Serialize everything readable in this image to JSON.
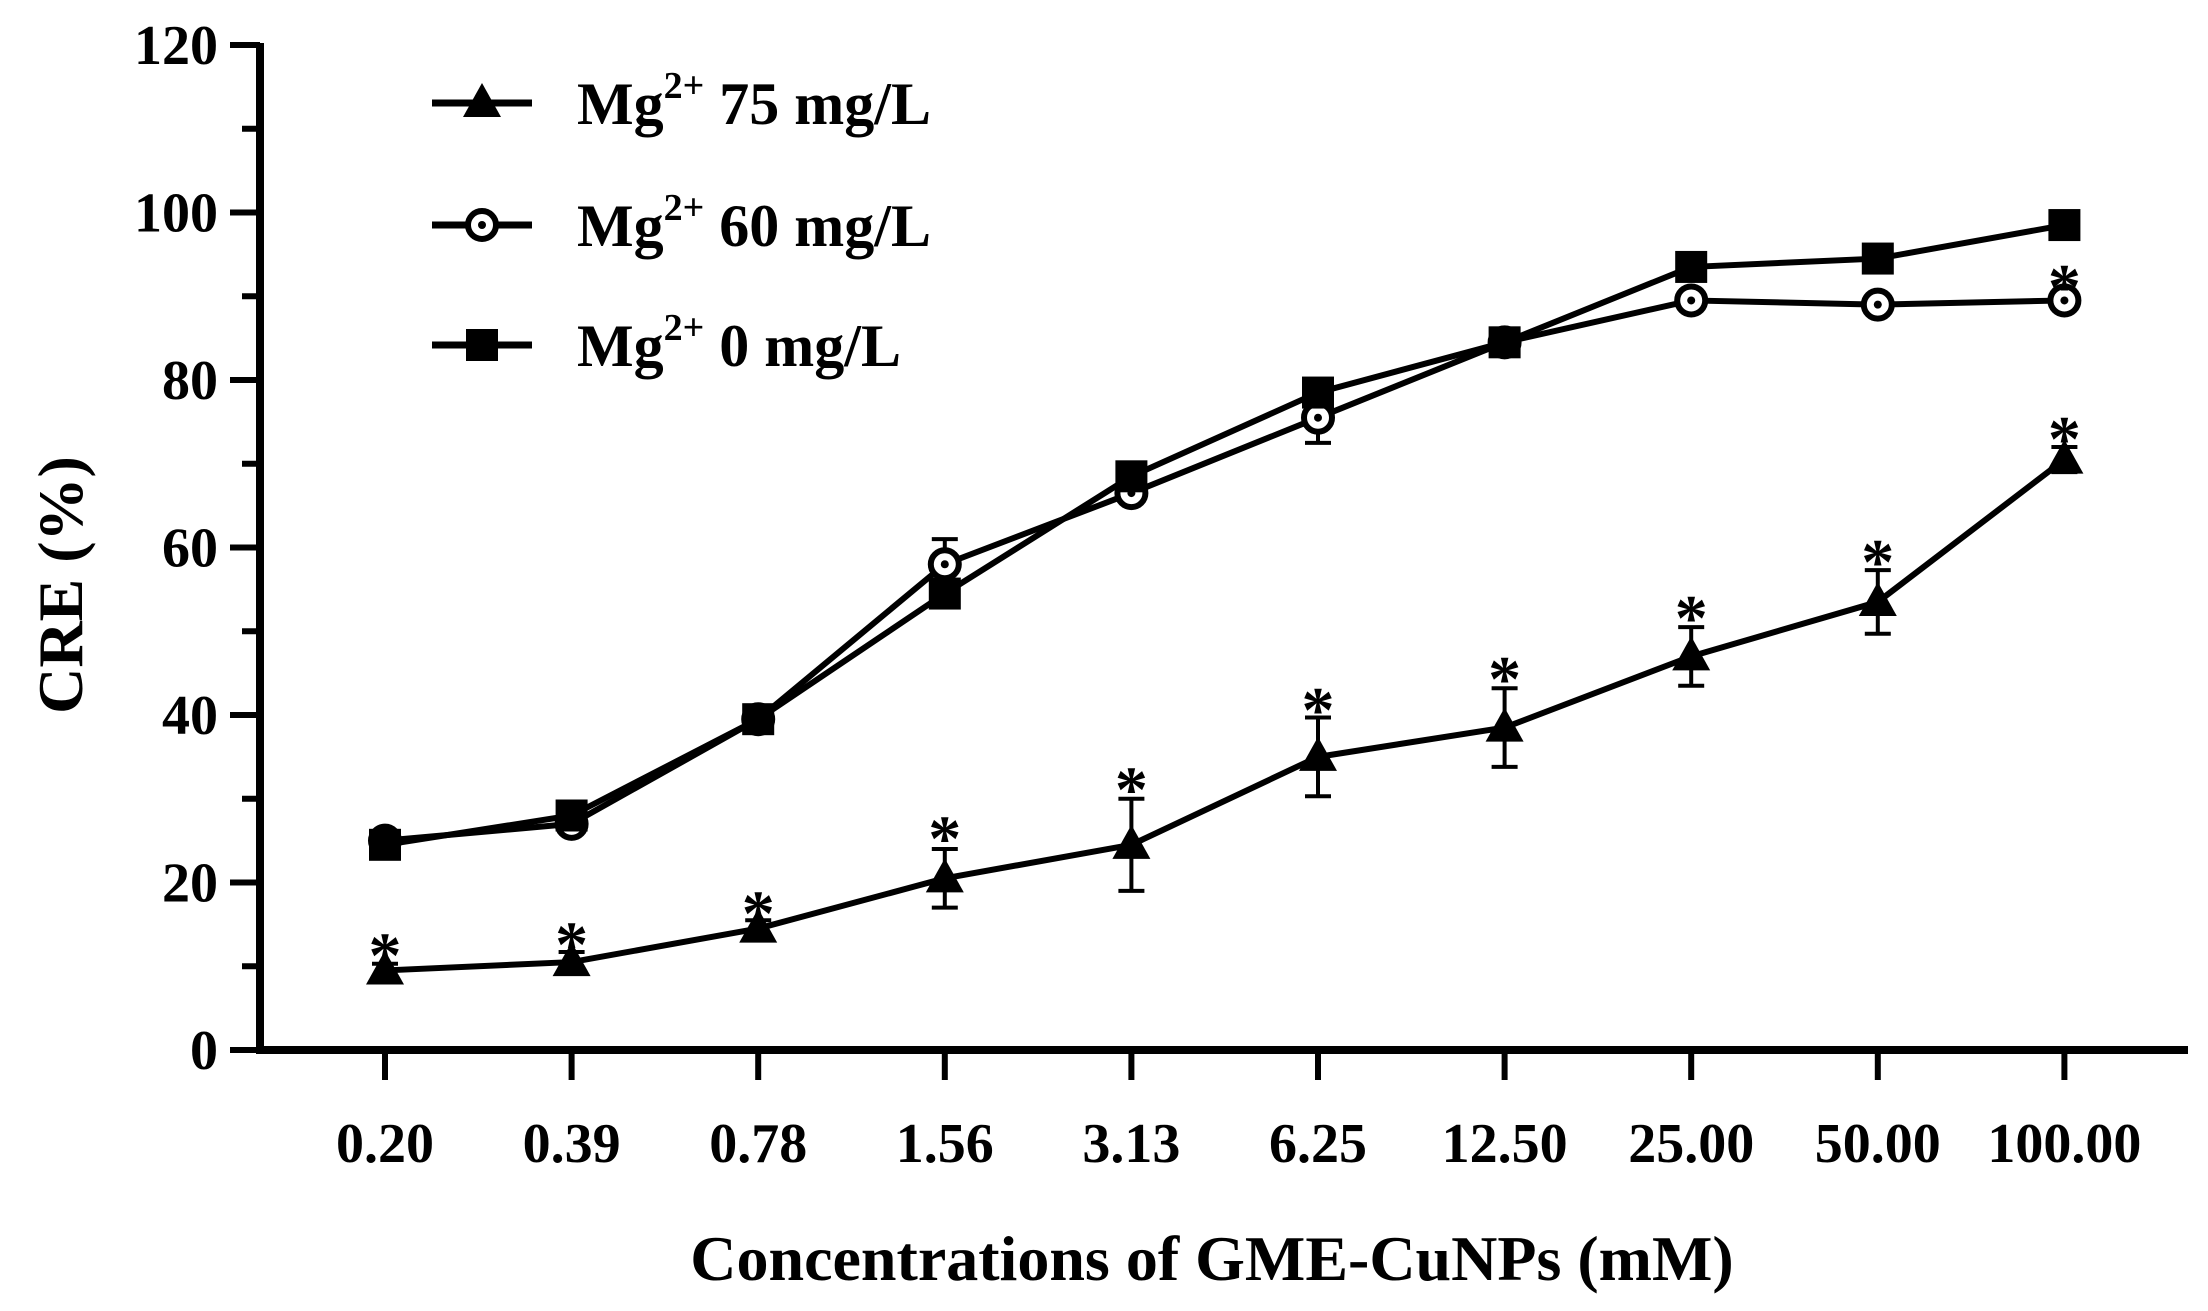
{
  "chart_data": {
    "type": "line",
    "title": "",
    "xlabel": "Concentrations of GME-CuNPs (mM)",
    "ylabel": "CRE (%)",
    "categories": [
      "0.20",
      "0.39",
      "0.78",
      "1.56",
      "3.13",
      "6.25",
      "12.50",
      "25.00",
      "50.00",
      "100.00"
    ],
    "ylim": [
      0,
      120
    ],
    "yticks": [
      "0",
      "20",
      "40",
      "60",
      "80",
      "100",
      "120"
    ],
    "legend_position": "top-left",
    "series": [
      {
        "name": "Mg 2+ 75 mg/L",
        "legend_base": "Mg",
        "legend_sup": "2+",
        "legend_rest": " 75 mg/L",
        "marker": "triangle",
        "values": [
          9.5,
          10.5,
          14.5,
          20.5,
          24.5,
          35,
          38.5,
          47,
          53.5,
          70.5
        ],
        "errors": [
          0.8,
          1.2,
          1.0,
          3.5,
          5.5,
          4.7,
          4.7,
          3.5,
          3.8,
          1.5
        ]
      },
      {
        "name": "Mg 2+ 60 mg/L",
        "legend_base": "Mg",
        "legend_sup": "2+",
        "legend_rest": " 60 mg/L",
        "marker": "circle",
        "values": [
          25,
          27,
          39.5,
          58,
          66.5,
          75.5,
          84.5,
          89.5,
          89,
          89.5
        ],
        "errors": [
          0.6,
          0.6,
          0.6,
          3.0,
          0.8,
          3.0,
          0.5,
          0.8,
          0.6,
          0.8
        ]
      },
      {
        "name": "Mg 2+ 0 mg/L",
        "legend_base": "Mg",
        "legend_sup": "2+",
        "legend_rest": " 0 mg/L",
        "marker": "square",
        "values": [
          24.5,
          28,
          39.5,
          54.5,
          68.5,
          78.5,
          84.5,
          93.5,
          94.5,
          98.5
        ],
        "errors": [
          0.6,
          0.6,
          0.6,
          0.6,
          0.8,
          0.6,
          0.6,
          0.6,
          0.6,
          0.6
        ]
      }
    ],
    "significance_symbol": "*",
    "annotations": [
      {
        "series": 0,
        "index": 0,
        "text": "*",
        "at": 12.0
      },
      {
        "series": 0,
        "index": 1,
        "text": "*",
        "at": 13.3
      },
      {
        "series": 0,
        "index": 2,
        "text": "*",
        "at": 17.0
      },
      {
        "series": 0,
        "index": 3,
        "text": "*",
        "at": 26.0
      },
      {
        "series": 0,
        "index": 4,
        "text": "*",
        "at": 31.8
      },
      {
        "series": 0,
        "index": 5,
        "text": "*",
        "at": 41.3
      },
      {
        "series": 0,
        "index": 6,
        "text": "*",
        "at": 45.0
      },
      {
        "series": 0,
        "index": 7,
        "text": "*",
        "at": 52.3
      },
      {
        "series": 0,
        "index": 8,
        "text": "*",
        "at": 59.0
      },
      {
        "series": 0,
        "index": 9,
        "text": "*",
        "at": 73.7
      },
      {
        "series": 1,
        "index": 9,
        "text": "*",
        "at": 91.8
      }
    ]
  }
}
